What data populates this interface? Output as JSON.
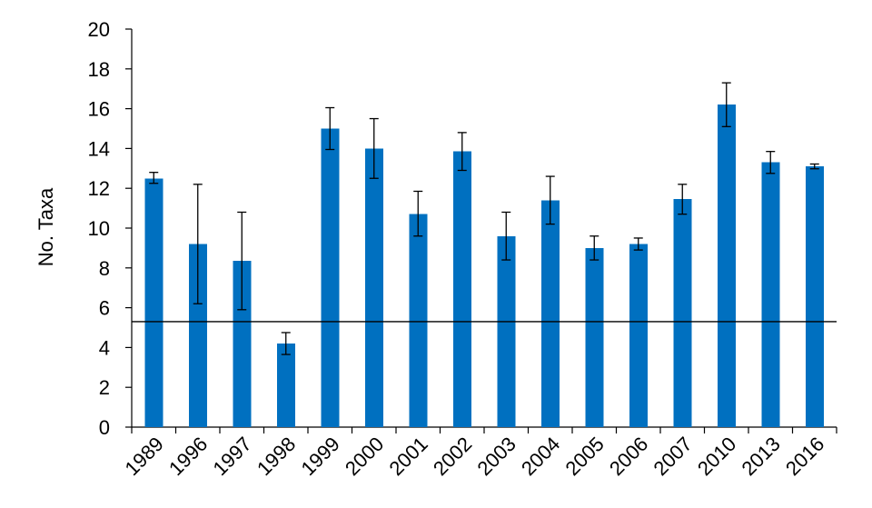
{
  "chart_data": {
    "type": "bar",
    "categories": [
      "1989",
      "1996",
      "1997",
      "1998",
      "1999",
      "2000",
      "2001",
      "2002",
      "2003",
      "2004",
      "2005",
      "2006",
      "2007",
      "2010",
      "2013",
      "2016"
    ],
    "values": [
      12.5,
      9.2,
      8.35,
      4.2,
      15.0,
      14.0,
      10.7,
      13.85,
      9.6,
      11.4,
      9.0,
      9.2,
      11.45,
      16.2,
      13.3,
      13.1
    ],
    "error_upper": [
      12.8,
      12.2,
      10.8,
      4.75,
      16.05,
      15.5,
      11.85,
      14.8,
      10.8,
      12.6,
      9.6,
      9.5,
      12.2,
      17.3,
      13.85,
      13.22
    ],
    "error_lower": [
      12.25,
      6.2,
      5.9,
      3.65,
      13.95,
      12.5,
      9.6,
      12.9,
      8.4,
      10.2,
      8.4,
      8.9,
      10.7,
      15.1,
      12.75,
      12.98
    ],
    "reference_line": 5.3,
    "xlabel": "",
    "ylabel": "No. Taxa",
    "ylim": [
      0,
      20
    ],
    "yticks": [
      0,
      2,
      4,
      6,
      8,
      10,
      12,
      14,
      16,
      18,
      20
    ],
    "bar_color": "#0070c0",
    "grid": false,
    "legend": "none"
  }
}
